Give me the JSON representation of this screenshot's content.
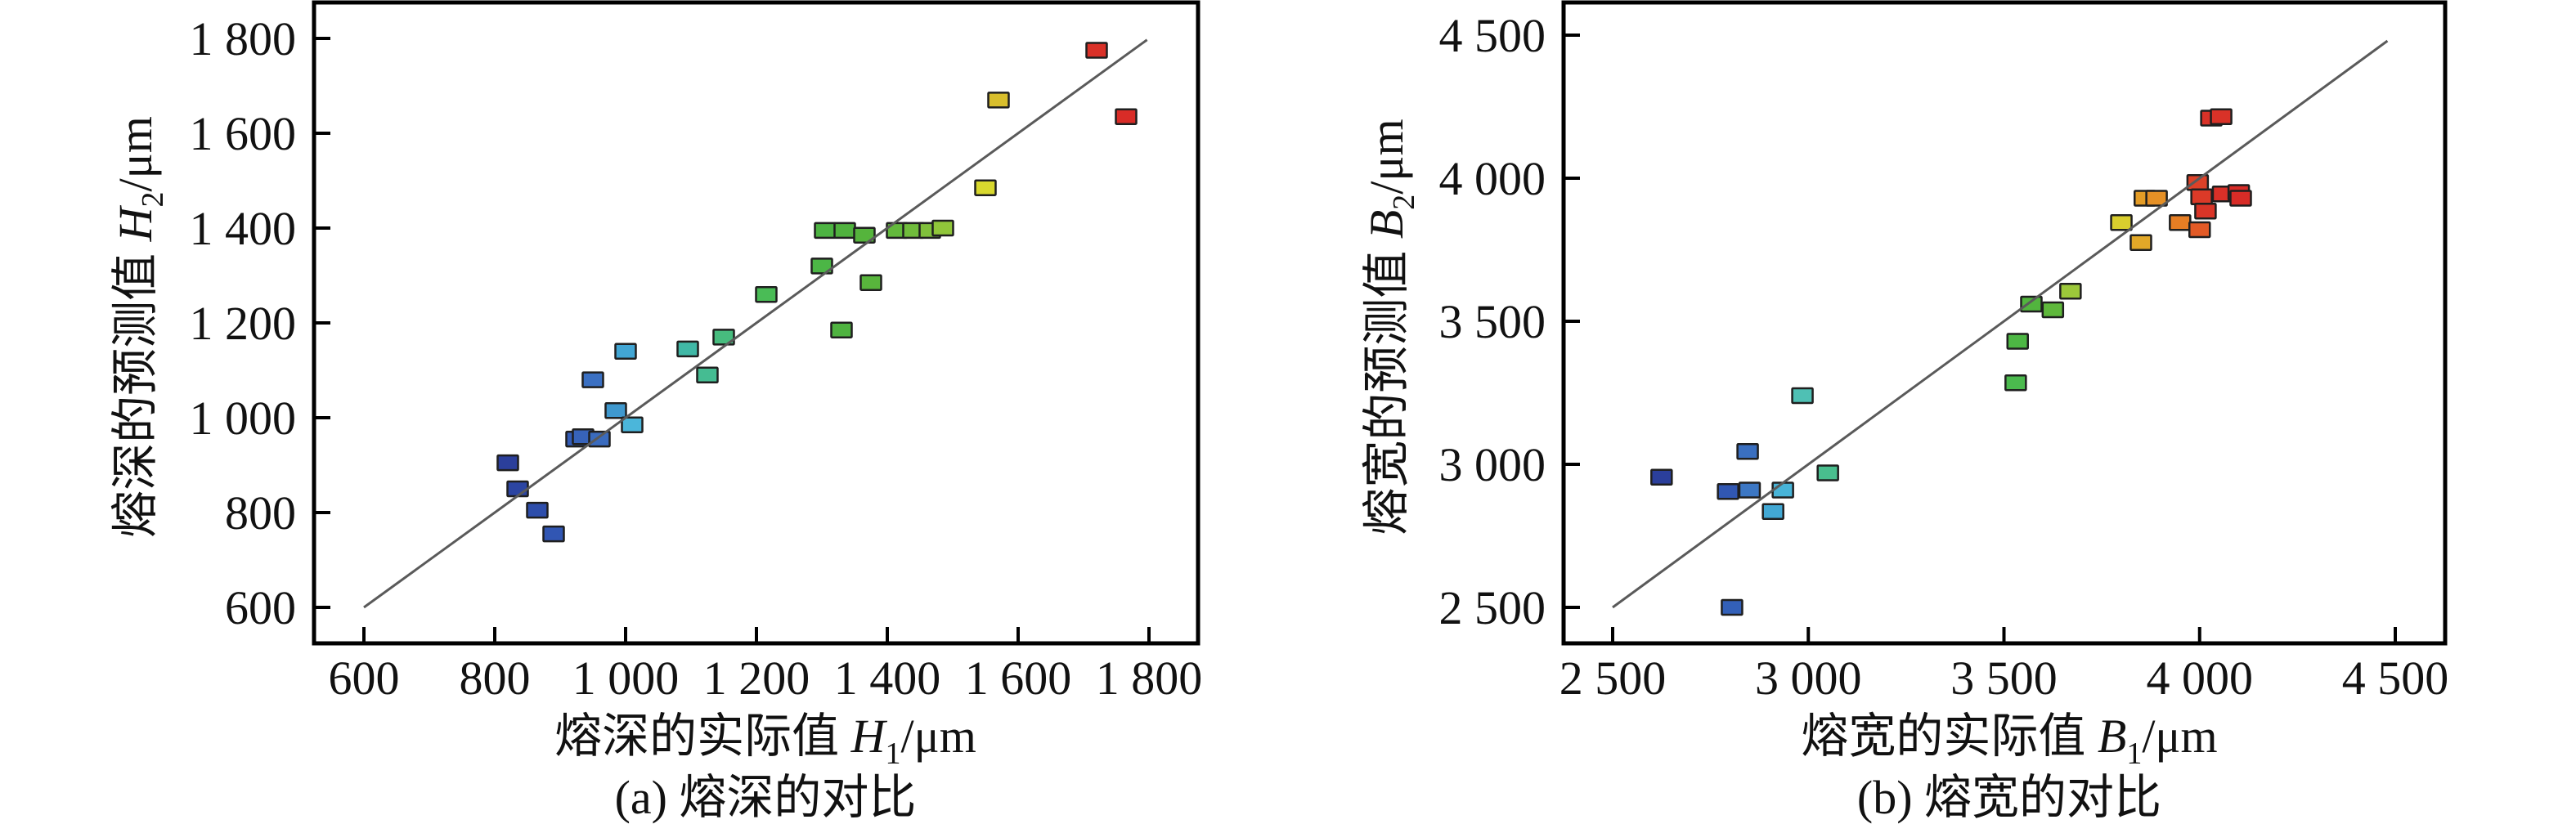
{
  "figure": {
    "background": "#ffffff",
    "axis_color": "#000000",
    "text_color": "#111111",
    "identity_line_color": "#5a5a5a",
    "marker": {
      "width": 25,
      "height": 18,
      "stroke_color": "#1f1f1f",
      "stroke_width": 2.5
    }
  },
  "chart_data": [
    {
      "id": "a",
      "type": "scatter",
      "caption": "(a) 熔深的对比",
      "xlabel": {
        "prefix": "熔深的实际值 ",
        "variable": "H",
        "subscript": "1",
        "unit": "/μm"
      },
      "ylabel": {
        "prefix": "熔深的预测值 ",
        "variable": "H",
        "subscript": "2",
        "unit": "/μm"
      },
      "xlim": [
        525,
        1875
      ],
      "ylim": [
        525,
        1875
      ],
      "grid": false,
      "x_tick_values": [
        600,
        800,
        1000,
        1200,
        1400,
        1600,
        1800
      ],
      "x_tick_labels": [
        "600",
        "800",
        "1 000",
        "1 200",
        "1 400",
        "1 600",
        "1 800"
      ],
      "y_tick_values": [
        600,
        800,
        1000,
        1200,
        1400,
        1600,
        1800
      ],
      "y_tick_labels": [
        "600",
        "800",
        "1 000",
        "1 200",
        "1 400",
        "1 600",
        "1 800"
      ],
      "identity_line": {
        "x1": 600,
        "y1": 600,
        "x2": 1797,
        "y2": 1797
      },
      "points": [
        [
          820,
          905,
          "#2B3F9B"
        ],
        [
          835,
          850,
          "#2C45A2"
        ],
        [
          865,
          805,
          "#2E4EAB"
        ],
        [
          890,
          755,
          "#3156B3"
        ],
        [
          925,
          955,
          "#335CB6"
        ],
        [
          935,
          960,
          "#3763BA"
        ],
        [
          960,
          955,
          "#3A6BBE"
        ],
        [
          950,
          1080,
          "#3B70C2"
        ],
        [
          985,
          1015,
          "#3F98CE"
        ],
        [
          1000,
          1140,
          "#42A6D4"
        ],
        [
          1010,
          985,
          "#4BB6DA"
        ],
        [
          1095,
          1145,
          "#40B8A6"
        ],
        [
          1125,
          1090,
          "#45BC92"
        ],
        [
          1150,
          1170,
          "#47BC7E"
        ],
        [
          1215,
          1260,
          "#4ABC56"
        ],
        [
          1300,
          1320,
          "#4CB646"
        ],
        [
          1305,
          1395,
          "#4DB342"
        ],
        [
          1330,
          1185,
          "#4FB340"
        ],
        [
          1335,
          1395,
          "#50B23E"
        ],
        [
          1365,
          1385,
          "#55B43C"
        ],
        [
          1375,
          1285,
          "#58B53C"
        ],
        [
          1415,
          1395,
          "#63B93C"
        ],
        [
          1440,
          1395,
          "#70BC3C"
        ],
        [
          1465,
          1395,
          "#80C03C"
        ],
        [
          1485,
          1400,
          "#90C63A"
        ],
        [
          1550,
          1485,
          "#D8D82E"
        ],
        [
          1570,
          1670,
          "#D8BE2C"
        ],
        [
          1720,
          1775,
          "#DA3128"
        ],
        [
          1765,
          1635,
          "#D92C27"
        ]
      ]
    },
    {
      "id": "b",
      "type": "scatter",
      "caption": "(b) 熔宽的对比",
      "xlabel": {
        "prefix": "熔宽的实际值 ",
        "variable": "B",
        "subscript": "1",
        "unit": "/μm"
      },
      "ylabel": {
        "prefix": "熔宽的预测值 ",
        "variable": "B",
        "subscript": "2",
        "unit": "/μm"
      },
      "xlim": [
        2375,
        4625
      ],
      "ylim": [
        2375,
        4615
      ],
      "grid": false,
      "x_tick_values": [
        2500,
        3000,
        3500,
        4000,
        4500
      ],
      "x_tick_labels": [
        "2 500",
        "3 000",
        "3 500",
        "4 000",
        "4 500"
      ],
      "y_tick_values": [
        2500,
        3000,
        3500,
        4000,
        4500
      ],
      "y_tick_labels": [
        "2 500",
        "3 000",
        "3 500",
        "4 000",
        "4 500"
      ],
      "identity_line": {
        "x1": 2500,
        "y1": 2500,
        "x2": 4480,
        "y2": 4480
      },
      "points": [
        [
          2625,
          2955,
          "#2B3F9B"
        ],
        [
          2795,
          2905,
          "#3157B2"
        ],
        [
          2805,
          2500,
          "#3360B8"
        ],
        [
          2845,
          3045,
          "#3A6FC0"
        ],
        [
          2850,
          2910,
          "#3C77C4"
        ],
        [
          2910,
          2835,
          "#42A8D4"
        ],
        [
          2935,
          2910,
          "#48B4D8"
        ],
        [
          2985,
          3240,
          "#4FC0B4"
        ],
        [
          3050,
          2970,
          "#49BE8E"
        ],
        [
          3530,
          3285,
          "#4BBA4E"
        ],
        [
          3535,
          3430,
          "#4DB744"
        ],
        [
          3570,
          3560,
          "#52B53E"
        ],
        [
          3625,
          3540,
          "#5FB83C"
        ],
        [
          3670,
          3605,
          "#9CC83A"
        ],
        [
          3800,
          3845,
          "#D9CE2E"
        ],
        [
          3850,
          3775,
          "#E2A828"
        ],
        [
          3860,
          3930,
          "#E49C26"
        ],
        [
          3890,
          3930,
          "#E59026"
        ],
        [
          3950,
          3845,
          "#E67E24"
        ],
        [
          4000,
          3820,
          "#E25A26"
        ],
        [
          3995,
          3985,
          "#DC4128"
        ],
        [
          4005,
          3935,
          "#DB3A28"
        ],
        [
          4015,
          3885,
          "#DA3528"
        ],
        [
          4060,
          3945,
          "#D93028"
        ],
        [
          4100,
          3950,
          "#D82C27"
        ],
        [
          4105,
          3930,
          "#D82C27"
        ],
        [
          4030,
          4210,
          "#D93228"
        ],
        [
          4055,
          4215,
          "#D93228"
        ]
      ]
    }
  ]
}
